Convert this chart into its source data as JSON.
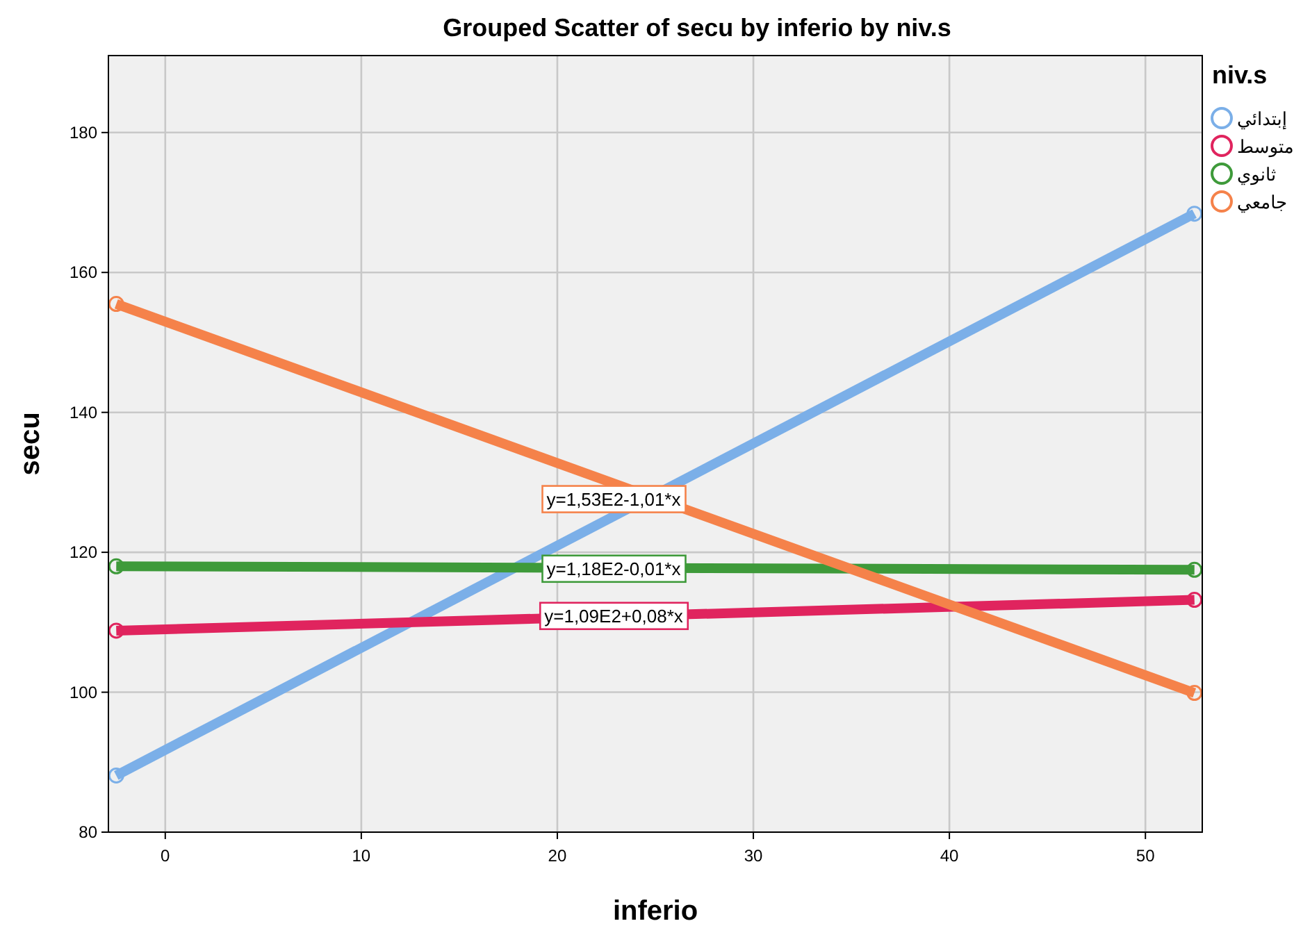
{
  "chart_data": {
    "type": "line",
    "title": "Grouped Scatter of secu by inferio by niv.s",
    "xlabel": "inferio",
    "ylabel": "secu",
    "legend_title": "niv.s",
    "legend": "top right",
    "grid": true,
    "marker": "circle",
    "xlim": [
      -2.9,
      52.9
    ],
    "ylim": [
      80,
      191
    ],
    "xticks": [
      0,
      10,
      20,
      30,
      40,
      50
    ],
    "yticks": [
      80,
      100,
      120,
      140,
      160,
      180
    ],
    "x": [
      -2.5,
      52.5
    ],
    "series": [
      {
        "name": "إبتدائي",
        "color": "#7bafe8",
        "values": [
          88.1,
          168.4
        ]
      },
      {
        "name": "متوسط",
        "color": "#e0245e",
        "values": [
          108.8,
          113.2
        ]
      },
      {
        "name": "ثانوي",
        "color": "#3e9a3a",
        "values": [
          118.0,
          117.5
        ]
      },
      {
        "name": "جامعي",
        "color": "#f5824a",
        "values": [
          155.5,
          99.9
        ]
      }
    ],
    "annotations": [
      "y=1,53E2-1,01*x",
      "y=1,18E2-0,01*x",
      "y=1,09E2+0,08*x"
    ]
  }
}
